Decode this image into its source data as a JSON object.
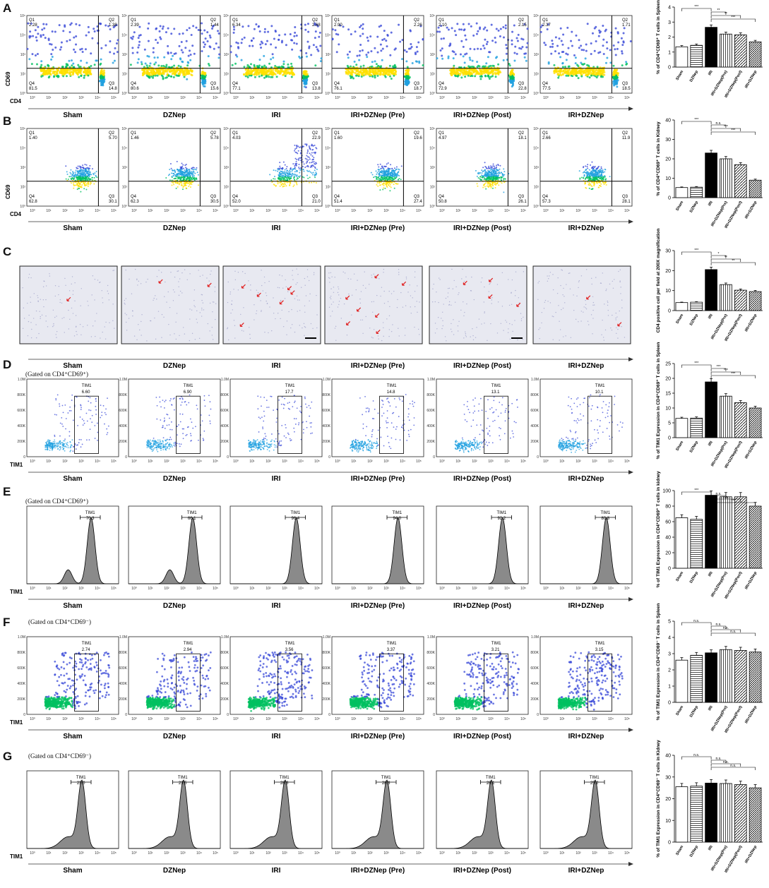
{
  "conditions": [
    "Sham",
    "DZNep",
    "IRI",
    "IRI+DZNep (Pre)",
    "IRI+DZNep (Post)",
    "IRI+DZNep"
  ],
  "bar_groups": [
    "Sham",
    "DZNep",
    "IRI",
    "IRI+DZNep(Pre)",
    "IRI+DZNep(Post)",
    "IRI+DZNep"
  ],
  "panels": [
    {
      "letter": "A",
      "kind": "quad",
      "gate": "",
      "xaxis": "CD4",
      "yaxis": "CD69",
      "quadrants": [
        {
          "q1": "2.28",
          "q2": "1.38",
          "q3": "14.8",
          "q4": "81.5"
        },
        {
          "q1": "2.39",
          "q2": "1.44",
          "q3": "15.6",
          "q4": "80.6"
        },
        {
          "q1": "6.34",
          "q2": "2.68",
          "q3": "13.8",
          "q4": "77.1"
        },
        {
          "q1": "2.90",
          "q2": "2.26",
          "q3": "18.7",
          "q4": "76.1"
        },
        {
          "q1": "2.10",
          "q2": "2.15",
          "q3": "22.8",
          "q4": "72.9"
        },
        {
          "q1": "2.37",
          "q2": "1.71",
          "q3": "18.5",
          "q4": "77.5"
        }
      ],
      "chart_data": {
        "type": "bar",
        "ylabel": "% of CD4⁺CD69⁺ T cells in Spleen",
        "ylim": [
          0,
          4
        ],
        "yticks": [
          "0",
          "1",
          "2",
          "3",
          "4"
        ],
        "values": [
          1.35,
          1.45,
          2.65,
          2.2,
          2.15,
          1.68
        ],
        "sig": [
          "***",
          "**",
          "**",
          "***"
        ]
      }
    },
    {
      "letter": "B",
      "kind": "quad",
      "gate": "",
      "xaxis": "CD4",
      "yaxis": "CD69",
      "quadrants": [
        {
          "q1": "1.40",
          "q2": "5.70",
          "q3": "30.1",
          "q4": "62.8"
        },
        {
          "q1": "1.46",
          "q2": "5.78",
          "q3": "30.5",
          "q4": "62.3"
        },
        {
          "q1": "4.03",
          "q2": "22.9",
          "q3": "21.0",
          "q4": "52.0"
        },
        {
          "q1": "1.60",
          "q2": "19.6",
          "q3": "27.4",
          "q4": "51.4"
        },
        {
          "q1": "4.97",
          "q2": "18.1",
          "q3": "26.1",
          "q4": "50.8"
        },
        {
          "q1": "2.66",
          "q2": "11.9",
          "q3": "28.1",
          "q4": "57.3"
        }
      ],
      "chart_data": {
        "type": "bar",
        "ylabel": "% of CD4⁺CD69⁺ T cells in Kidney",
        "ylim": [
          0,
          40
        ],
        "yticks": [
          "0",
          "10",
          "20",
          "30",
          "40"
        ],
        "values": [
          5.2,
          5.4,
          23.0,
          20.0,
          17.0,
          9.0
        ],
        "sig": [
          "***",
          "n.s.",
          "***",
          "***"
        ]
      }
    },
    {
      "letter": "C",
      "kind": "micro",
      "gate": "",
      "arrows": [
        1,
        2,
        6,
        7,
        4,
        2
      ],
      "chart_data": {
        "type": "bar",
        "ylabel": "CD4 positive cell per field at 200X magnification",
        "ylim": [
          0,
          30
        ],
        "yticks": [
          "0",
          "10",
          "20",
          "30"
        ],
        "values": [
          4.0,
          4.2,
          20.5,
          13.0,
          10.2,
          9.5
        ],
        "sig": [
          "***",
          "*",
          "**",
          "**"
        ]
      }
    },
    {
      "letter": "D",
      "kind": "scatter",
      "gate": "(Gated on CD4⁺CD69⁺)",
      "xaxis": "TIM1",
      "gatelabel": "TIM1",
      "gatevalues": [
        "6.60",
        "6.90",
        "17.7",
        "14.8",
        "13.1",
        "10.1"
      ],
      "yticks": [
        "0",
        "200K",
        "400K",
        "600K",
        "800K",
        "1.0M"
      ],
      "chart_data": {
        "type": "bar",
        "ylabel": "% of TIM1 Expression in CD4⁺CD69⁺ T cells in Spleen",
        "ylim": [
          0,
          25
        ],
        "yticks": [
          "0",
          "5",
          "10",
          "15",
          "20",
          "25"
        ],
        "values": [
          6.5,
          6.6,
          18.8,
          14.0,
          11.8,
          10.0
        ],
        "sig": [
          "***",
          "***",
          "***",
          "***"
        ]
      }
    },
    {
      "letter": "E",
      "kind": "histo",
      "gate": "(Gated on CD4⁺CD69⁺)",
      "xaxis": "TIM1",
      "gatelabel": "TIM1",
      "gatevalues": [
        "70.3",
        "66.1",
        "96.4",
        "94.0",
        "92.2",
        "80.8"
      ],
      "chart_data": {
        "type": "bar",
        "ylabel": "% of TIM1 Expression in CD4⁺CD69⁺ T cells in kidney",
        "ylim": [
          0,
          100
        ],
        "yticks": [
          "0",
          "20",
          "40",
          "60",
          "80",
          "100"
        ],
        "values": [
          65,
          63,
          94,
          92,
          92,
          80
        ],
        "sig": [
          "***",
          "n.s.",
          "n.s.",
          "***"
        ]
      }
    },
    {
      "letter": "F",
      "kind": "scatter2",
      "gate": "(Gated on CD4⁺CD69⁻)",
      "xaxis": "TIM1",
      "gatelabel": "TIM1",
      "gatevalues": [
        "2.74",
        "2.94",
        "3.56",
        "3.37",
        "3.21",
        "3.15"
      ],
      "yticks": [
        "0",
        "200K",
        "400K",
        "600K",
        "800K",
        "1.0M"
      ],
      "chart_data": {
        "type": "bar",
        "ylabel": "% of TIM1 Expression in CD4⁺CD69⁻ T cells in Spleen",
        "ylim": [
          0,
          5
        ],
        "yticks": [
          "0",
          "1",
          "2",
          "3",
          "4",
          "5"
        ],
        "values": [
          2.6,
          2.9,
          3.05,
          3.25,
          3.2,
          3.1
        ],
        "sig": [
          "n.s.",
          "n.s.",
          "n.s.",
          "n.s."
        ]
      }
    },
    {
      "letter": "G",
      "kind": "histo2",
      "gate": "(Gated on CD4⁺CD69⁻)",
      "xaxis": "TIM1",
      "gatelabel": "TIM1",
      "gatevalues": [
        "23.0",
        "23.5",
        "28.3",
        "28.3",
        "28.1",
        "25.2"
      ],
      "chart_data": {
        "type": "bar",
        "ylabel": "% of TIM1 Expression in CD4⁺CD69⁻ T cells in Kidney",
        "ylim": [
          0,
          40
        ],
        "yticks": [
          "0",
          "10",
          "20",
          "30",
          "40"
        ],
        "values": [
          25.5,
          25.8,
          27.2,
          27.0,
          26.5,
          25.0
        ],
        "sig": [
          "n.s.",
          "n.s.",
          "n.s.",
          "n.s."
        ]
      }
    }
  ],
  "colors": {
    "fill_black": "#000000",
    "hist_fill": "#888888",
    "hot": "#00b050",
    "dot": "#3b4bd8"
  }
}
